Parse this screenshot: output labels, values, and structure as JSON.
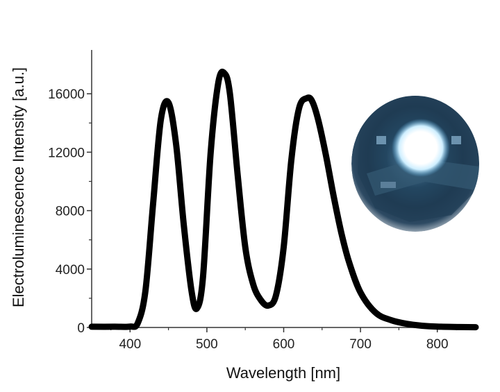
{
  "chart_data": {
    "type": "line",
    "xlabel": "Wavelength [nm]",
    "ylabel": "Electroluminescence Intensity [a.u.]",
    "xlim": [
      350,
      850
    ],
    "ylim": [
      0,
      19000
    ],
    "x_ticks": [
      400,
      500,
      600,
      700,
      800
    ],
    "y_ticks": [
      0,
      4000,
      8000,
      12000,
      16000
    ],
    "x_tick_labels": [
      "400",
      "500",
      "600",
      "700",
      "800"
    ],
    "y_tick_labels": [
      "0",
      "4000",
      "8000",
      "12000",
      "16000"
    ],
    "grid": false,
    "series": [
      {
        "color": "#000000",
        "x": [
          350,
          380,
          400,
          410,
          420,
          430,
          440,
          450,
          460,
          470,
          480,
          487,
          495,
          505,
          515,
          523,
          530,
          540,
          550,
          560,
          570,
          580,
          590,
          600,
          610,
          620,
          630,
          637,
          645,
          655,
          665,
          675,
          685,
          700,
          720,
          740,
          760,
          780,
          800,
          830,
          850
        ],
        "y": [
          50,
          50,
          60,
          300,
          2500,
          8500,
          14200,
          15400,
          12500,
          7000,
          2500,
          1300,
          3500,
          12000,
          16800,
          17400,
          16000,
          10500,
          5500,
          3000,
          1900,
          1500,
          2200,
          5500,
          11500,
          15000,
          15700,
          15500,
          14200,
          11800,
          9000,
          6500,
          4500,
          2400,
          1000,
          500,
          250,
          120,
          60,
          30,
          20
        ]
      }
    ]
  },
  "inset": {
    "image": "glowing-led-photo",
    "colors": {
      "glow": "#ffffff",
      "halo": "#bfe6ff",
      "body": "#1f3b53",
      "edge": "#cfd6dc"
    }
  }
}
